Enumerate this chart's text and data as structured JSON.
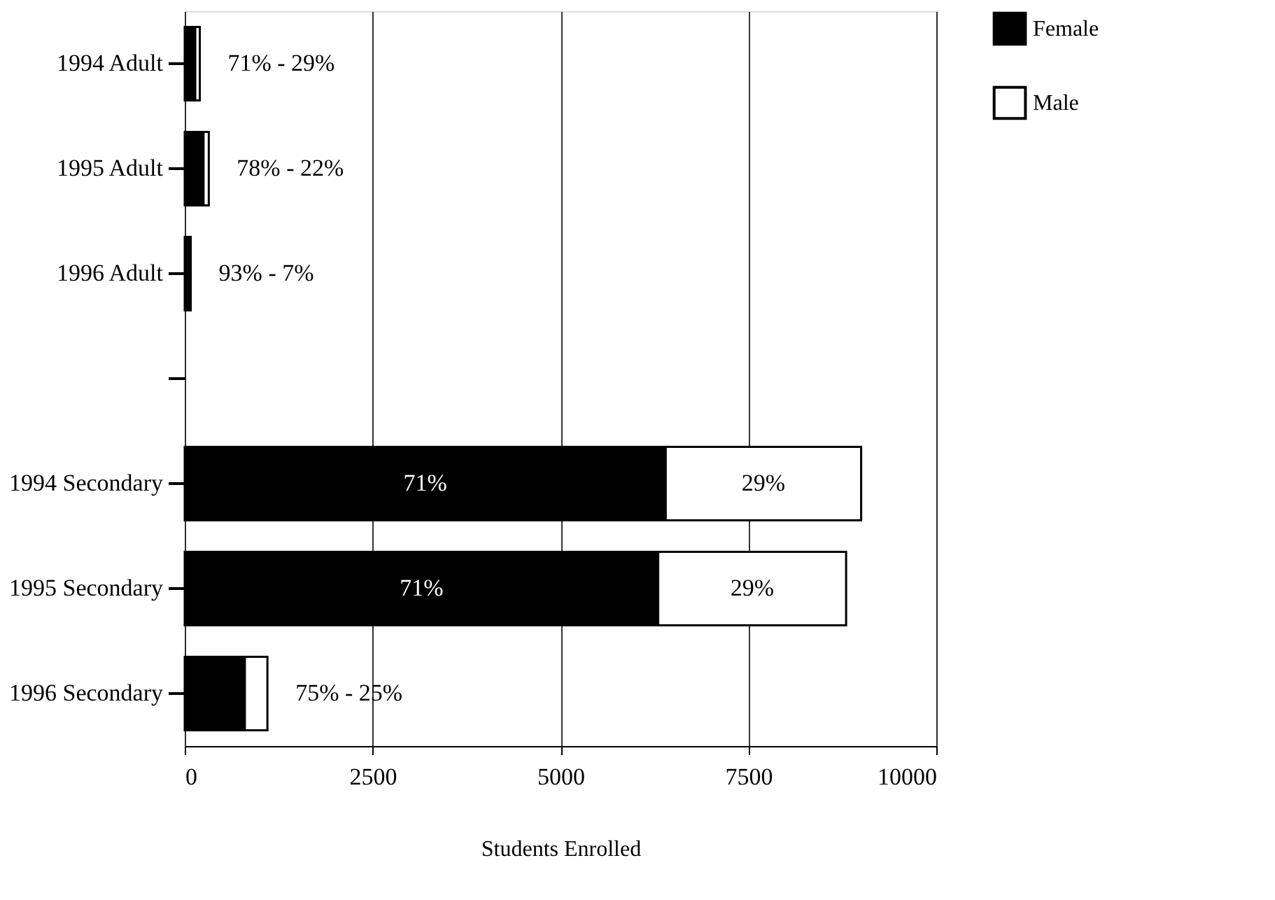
{
  "chart_data": {
    "type": "bar",
    "orientation": "horizontal",
    "stacked": true,
    "xlabel": "Students Enrolled",
    "categories": [
      "1994 Adult",
      "1995 Adult",
      "1996 Adult",
      null,
      "1994 Secondary",
      "1995 Secondary",
      "1996 Secondary"
    ],
    "series": [
      {
        "name": "Female",
        "color": "#000000",
        "values": [
          140,
          250,
          70,
          null,
          6400,
          6300,
          800
        ]
      },
      {
        "name": "Male",
        "color": "#ffffff",
        "values": [
          60,
          70,
          10,
          null,
          2600,
          2500,
          300
        ]
      }
    ],
    "annotations": [
      "71% - 29%",
      "78% - 22%",
      "93% - 7%",
      "71%",
      "29%",
      "71%",
      "29%",
      "75% - 25%"
    ],
    "xlim": [
      0,
      10000
    ],
    "xticks": [
      0,
      2500,
      5000,
      7500,
      10000
    ],
    "grid": "x",
    "legend": "right"
  }
}
